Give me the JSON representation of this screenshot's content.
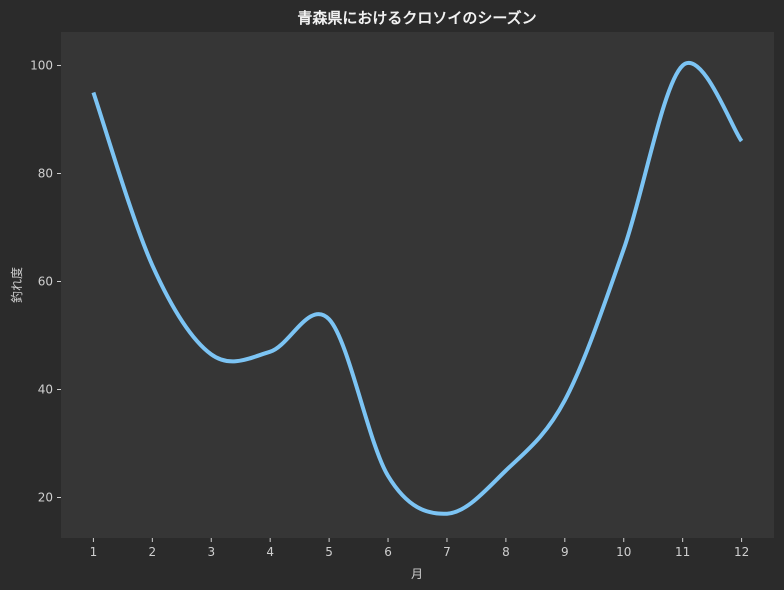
{
  "chart_data": {
    "type": "line",
    "title": "青森県におけるクロソイのシーズン",
    "xlabel": "月",
    "ylabel": "釣れ度",
    "x": [
      1,
      2,
      3,
      4,
      5,
      6,
      7,
      8,
      9,
      10,
      11,
      12
    ],
    "xticks": [
      "1",
      "2",
      "3",
      "4",
      "5",
      "6",
      "7",
      "8",
      "9",
      "10",
      "11",
      "12"
    ],
    "yticks": [
      "20",
      "40",
      "60",
      "80",
      "100"
    ],
    "xlim": [
      0.45,
      12.55
    ],
    "ylim": [
      12.5,
      106.2
    ],
    "series": [
      {
        "color": "#7cc4f4",
        "values": [
          95,
          63,
          46.5,
          47,
          53,
          24,
          17,
          25,
          38,
          66,
          100,
          86
        ]
      }
    ],
    "grid": false,
    "legend": "none"
  },
  "colors": {
    "background": "#2b2b2b",
    "plot_background": "#363636",
    "text": "#cfcfcf",
    "title": "#f2f2f2"
  }
}
